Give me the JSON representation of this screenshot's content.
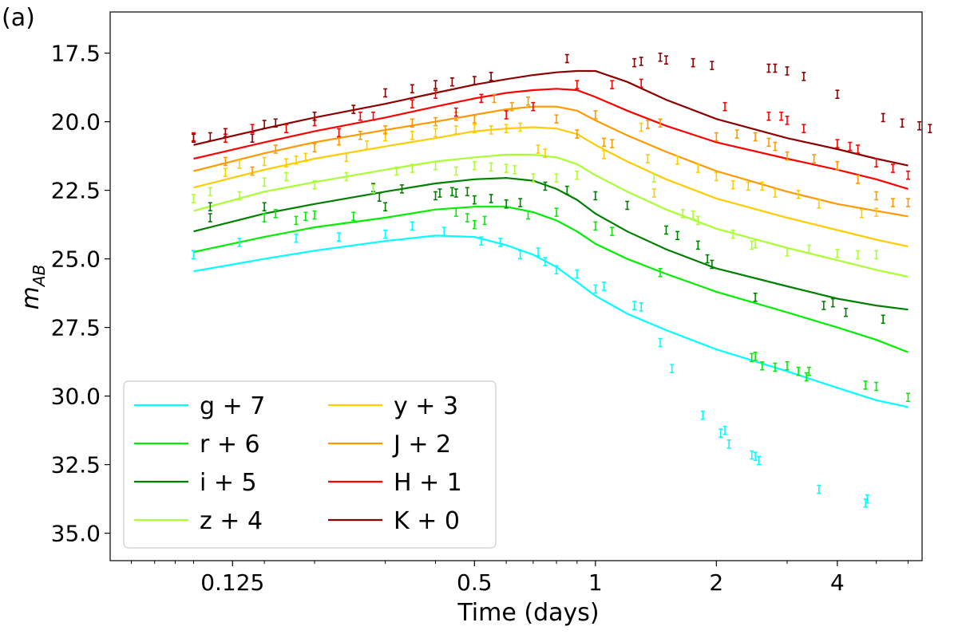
{
  "chart_data": {
    "type": "line",
    "panel_label": "(a)",
    "xlabel": "Time (days)",
    "ylabel": "m",
    "ylabel_sub": "AB",
    "x_scale": "log2",
    "y_inverted": true,
    "xlim": [
      0.062,
      6.5
    ],
    "ylim": [
      36.0,
      16.0
    ],
    "x_ticks": [
      0.125,
      0.5,
      1,
      2,
      4
    ],
    "x_tick_labels": [
      "0.125",
      "0.5",
      "1",
      "2",
      "4"
    ],
    "y_ticks": [
      17.5,
      20.0,
      22.5,
      25.0,
      27.5,
      30.0,
      32.5,
      35.0
    ],
    "y_tick_labels": [
      "17.5",
      "20.0",
      "22.5",
      "25.0",
      "27.5",
      "30.0",
      "32.5",
      "35.0"
    ],
    "grid": false,
    "legend_position": "bottom-left",
    "model_x": [
      0.1,
      0.15,
      0.2,
      0.3,
      0.4,
      0.5,
      0.6,
      0.7,
      0.8,
      0.9,
      1.0,
      1.2,
      1.5,
      2.0,
      3.0,
      4.0,
      5.0,
      6.0
    ],
    "series": [
      {
        "name": "g + 7",
        "color": "#00ffff",
        "model_y": [
          25.45,
          25.0,
          24.7,
          24.35,
          24.15,
          24.2,
          24.5,
          24.85,
          25.3,
          25.85,
          26.35,
          27.0,
          27.6,
          28.3,
          29.1,
          29.7,
          30.15,
          30.4
        ],
        "obs": [
          [
            0.1,
            24.85
          ],
          [
            0.13,
            24.4
          ],
          [
            0.18,
            24.25
          ],
          [
            0.23,
            24.2
          ],
          [
            0.3,
            24.1
          ],
          [
            0.35,
            23.8
          ],
          [
            0.42,
            24.0
          ],
          [
            0.52,
            24.35
          ],
          [
            0.58,
            24.4
          ],
          [
            0.65,
            24.85
          ],
          [
            0.72,
            24.75
          ],
          [
            0.75,
            25.1
          ],
          [
            0.8,
            25.4
          ],
          [
            0.9,
            25.55
          ],
          [
            1.0,
            26.1
          ],
          [
            1.05,
            26.0
          ],
          [
            1.25,
            26.7
          ],
          [
            1.3,
            26.75
          ],
          [
            1.45,
            28.05
          ],
          [
            1.55,
            29.0
          ],
          [
            1.85,
            30.7
          ],
          [
            2.05,
            31.35
          ],
          [
            2.1,
            31.25
          ],
          [
            2.15,
            31.75
          ],
          [
            2.45,
            32.15
          ],
          [
            2.5,
            32.2
          ],
          [
            2.55,
            32.35
          ],
          [
            3.6,
            33.4
          ],
          [
            4.7,
            33.9
          ],
          [
            4.75,
            33.75
          ]
        ]
      },
      {
        "name": "r + 6",
        "color": "#00ee00",
        "model_y": [
          24.75,
          24.2,
          23.85,
          23.5,
          23.2,
          23.1,
          23.1,
          23.3,
          23.6,
          24.0,
          24.45,
          25.0,
          25.55,
          26.2,
          26.95,
          27.5,
          27.95,
          28.4
        ],
        "obs": [
          [
            0.15,
            23.5
          ],
          [
            0.16,
            23.35
          ],
          [
            0.18,
            23.6
          ],
          [
            0.19,
            23.45
          ],
          [
            0.2,
            23.4
          ],
          [
            0.25,
            23.45
          ],
          [
            0.45,
            23.3
          ],
          [
            0.48,
            23.5
          ],
          [
            0.5,
            23.75
          ],
          [
            0.53,
            23.6
          ],
          [
            0.68,
            23.4
          ],
          [
            0.8,
            23.3
          ],
          [
            1.0,
            23.8
          ],
          [
            1.1,
            24.0
          ],
          [
            1.45,
            25.5
          ],
          [
            2.45,
            28.6
          ],
          [
            2.5,
            28.55
          ],
          [
            2.6,
            28.9
          ],
          [
            2.8,
            28.95
          ],
          [
            3.0,
            28.9
          ],
          [
            3.2,
            29.1
          ],
          [
            3.35,
            29.3
          ],
          [
            3.4,
            29.1
          ],
          [
            4.7,
            29.6
          ],
          [
            5.0,
            29.65
          ],
          [
            6.0,
            30.05
          ]
        ]
      },
      {
        "name": "i + 5",
        "color": "#008000",
        "model_y": [
          24.0,
          23.35,
          23.0,
          22.55,
          22.25,
          22.1,
          22.05,
          22.15,
          22.45,
          22.85,
          23.35,
          24.0,
          24.65,
          25.35,
          26.0,
          26.45,
          26.7,
          26.85
        ],
        "obs": [
          [
            0.11,
            23.1
          ],
          [
            0.11,
            23.5
          ],
          [
            0.15,
            23.1
          ],
          [
            0.28,
            22.4
          ],
          [
            0.29,
            22.75
          ],
          [
            0.3,
            23.1
          ],
          [
            0.33,
            22.45
          ],
          [
            0.4,
            22.7
          ],
          [
            0.41,
            22.6
          ],
          [
            0.44,
            22.55
          ],
          [
            0.45,
            22.6
          ],
          [
            0.48,
            22.55
          ],
          [
            0.5,
            22.85
          ],
          [
            0.55,
            22.8
          ],
          [
            0.6,
            23.0
          ],
          [
            0.65,
            22.95
          ],
          [
            0.75,
            22.35
          ],
          [
            0.85,
            22.5
          ],
          [
            1.0,
            22.7
          ],
          [
            1.2,
            23.05
          ],
          [
            1.5,
            23.95
          ],
          [
            1.6,
            24.15
          ],
          [
            1.8,
            24.5
          ],
          [
            1.9,
            25.0
          ],
          [
            1.95,
            25.2
          ],
          [
            2.5,
            26.4
          ],
          [
            3.7,
            26.7
          ],
          [
            3.9,
            26.6
          ],
          [
            4.2,
            26.95
          ],
          [
            5.2,
            27.2
          ]
        ]
      },
      {
        "name": "z + 4",
        "color": "#aaff33",
        "model_y": [
          23.25,
          22.55,
          22.2,
          21.75,
          21.45,
          21.3,
          21.2,
          21.2,
          21.3,
          21.55,
          21.95,
          22.55,
          23.2,
          23.9,
          24.6,
          25.05,
          25.4,
          25.65
        ],
        "obs": [
          [
            0.1,
            22.8
          ],
          [
            0.11,
            22.55
          ],
          [
            0.13,
            22.7
          ],
          [
            0.15,
            22.2
          ],
          [
            0.17,
            22.0
          ],
          [
            0.2,
            22.3
          ],
          [
            0.24,
            22.0
          ],
          [
            0.28,
            22.45
          ],
          [
            0.32,
            21.8
          ],
          [
            0.35,
            21.7
          ],
          [
            0.4,
            21.6
          ],
          [
            0.45,
            21.8
          ],
          [
            0.5,
            21.6
          ],
          [
            0.55,
            21.65
          ],
          [
            0.6,
            21.7
          ],
          [
            0.63,
            21.75
          ],
          [
            0.7,
            22.05
          ],
          [
            0.8,
            22.05
          ],
          [
            0.9,
            21.95
          ],
          [
            1.4,
            22.05
          ],
          [
            1.65,
            23.35
          ],
          [
            1.75,
            23.4
          ],
          [
            1.8,
            23.6
          ],
          [
            2.2,
            24.1
          ],
          [
            2.45,
            24.5
          ],
          [
            2.5,
            24.45
          ],
          [
            3.0,
            24.75
          ],
          [
            3.4,
            24.65
          ],
          [
            4.0,
            24.8
          ],
          [
            4.5,
            24.85
          ],
          [
            5.0,
            24.85
          ]
        ]
      },
      {
        "name": "y + 3",
        "color": "#ffcc00",
        "model_y": [
          22.4,
          21.75,
          21.35,
          20.9,
          20.6,
          20.35,
          20.25,
          20.2,
          20.25,
          20.45,
          20.85,
          21.45,
          22.1,
          22.8,
          23.5,
          23.95,
          24.3,
          24.55
        ],
        "obs": [
          [
            0.12,
            21.85
          ],
          [
            0.13,
            21.55
          ],
          [
            0.15,
            21.45
          ],
          [
            0.17,
            21.5
          ],
          [
            0.18,
            21.4
          ],
          [
            0.19,
            21.3
          ],
          [
            0.24,
            21.3
          ],
          [
            0.27,
            20.85
          ],
          [
            0.3,
            20.55
          ],
          [
            0.35,
            20.5
          ],
          [
            0.4,
            20.4
          ],
          [
            0.45,
            20.3
          ],
          [
            0.5,
            20.25
          ],
          [
            0.55,
            20.3
          ],
          [
            0.6,
            20.25
          ],
          [
            0.65,
            20.2
          ],
          [
            0.72,
            21.0
          ],
          [
            0.75,
            21.15
          ],
          [
            1.05,
            21.2
          ],
          [
            1.3,
            20.2
          ],
          [
            1.35,
            21.35
          ],
          [
            1.4,
            22.6
          ],
          [
            1.6,
            21.4
          ],
          [
            1.8,
            21.7
          ],
          [
            2.0,
            22.0
          ],
          [
            2.2,
            22.3
          ],
          [
            2.4,
            22.35
          ],
          [
            2.6,
            22.35
          ],
          [
            2.8,
            22.6
          ],
          [
            3.2,
            22.65
          ],
          [
            3.6,
            23.0
          ],
          [
            4.6,
            23.35
          ],
          [
            5.0,
            23.3
          ]
        ]
      },
      {
        "name": "J + 2",
        "color": "#ff9900",
        "model_y": [
          21.8,
          21.15,
          20.75,
          20.3,
          20.0,
          19.75,
          19.55,
          19.45,
          19.45,
          19.6,
          19.95,
          20.5,
          21.1,
          21.8,
          22.55,
          23.0,
          23.25,
          23.45
        ],
        "obs": [
          [
            0.12,
            21.45
          ],
          [
            0.14,
            21.8
          ],
          [
            0.16,
            21.0
          ],
          [
            0.2,
            20.95
          ],
          [
            0.23,
            20.7
          ],
          [
            0.26,
            20.5
          ],
          [
            0.3,
            20.3
          ],
          [
            0.35,
            20.05
          ],
          [
            0.4,
            20.0
          ],
          [
            0.45,
            19.8
          ],
          [
            0.5,
            19.9
          ],
          [
            0.56,
            19.15
          ],
          [
            0.62,
            19.45
          ],
          [
            0.68,
            19.25
          ],
          [
            0.8,
            19.9
          ],
          [
            0.9,
            20.45
          ],
          [
            1.0,
            19.75
          ],
          [
            1.05,
            20.75
          ],
          [
            1.1,
            20.8
          ],
          [
            1.35,
            20.1
          ],
          [
            1.45,
            20.05
          ],
          [
            2.0,
            20.55
          ],
          [
            2.25,
            20.45
          ],
          [
            2.5,
            20.55
          ],
          [
            2.7,
            20.75
          ],
          [
            2.8,
            20.9
          ],
          [
            3.0,
            21.25
          ],
          [
            3.5,
            21.35
          ],
          [
            4.0,
            21.6
          ],
          [
            4.5,
            22.1
          ],
          [
            5.0,
            22.7
          ],
          [
            5.5,
            22.95
          ],
          [
            6.0,
            22.95
          ]
        ]
      },
      {
        "name": "H + 1",
        "color": "#ff0000",
        "model_y": [
          21.35,
          20.75,
          20.35,
          19.85,
          19.45,
          19.15,
          18.95,
          18.85,
          18.8,
          18.85,
          19.1,
          19.6,
          20.15,
          20.75,
          21.35,
          21.75,
          22.1,
          22.45
        ],
        "obs": [
          [
            0.1,
            20.55
          ],
          [
            0.12,
            20.6
          ],
          [
            0.14,
            20.25
          ],
          [
            0.17,
            20.25
          ],
          [
            0.2,
            20.0
          ],
          [
            0.23,
            20.4
          ],
          [
            0.26,
            19.8
          ],
          [
            0.28,
            19.8
          ],
          [
            0.35,
            19.35
          ],
          [
            0.4,
            19.0
          ],
          [
            0.45,
            19.65
          ],
          [
            0.52,
            19.15
          ],
          [
            0.6,
            19.75
          ],
          [
            0.7,
            19.45
          ],
          [
            0.9,
            18.65
          ],
          [
            1.1,
            18.65
          ],
          [
            1.3,
            18.6
          ],
          [
            2.1,
            19.45
          ],
          [
            2.7,
            19.8
          ],
          [
            2.9,
            19.8
          ],
          [
            3.0,
            19.95
          ],
          [
            3.3,
            20.25
          ],
          [
            4.0,
            20.8
          ],
          [
            4.3,
            20.9
          ],
          [
            4.5,
            21.0
          ],
          [
            5.0,
            21.5
          ],
          [
            5.5,
            21.7
          ],
          [
            6.0,
            21.95
          ]
        ]
      },
      {
        "name": "K + 0",
        "color": "#8b0000",
        "model_y": [
          20.85,
          20.25,
          19.85,
          19.35,
          18.95,
          18.65,
          18.45,
          18.3,
          18.2,
          18.15,
          18.15,
          18.55,
          19.2,
          19.9,
          20.6,
          21.0,
          21.35,
          21.6
        ],
        "obs": [
          [
            0.1,
            20.6
          ],
          [
            0.11,
            20.55
          ],
          [
            0.12,
            20.4
          ],
          [
            0.14,
            20.6
          ],
          [
            0.15,
            20.1
          ],
          [
            0.16,
            20.05
          ],
          [
            0.2,
            19.8
          ],
          [
            0.25,
            19.55
          ],
          [
            0.3,
            18.95
          ],
          [
            0.35,
            18.8
          ],
          [
            0.4,
            18.65
          ],
          [
            0.44,
            18.55
          ],
          [
            0.5,
            18.5
          ],
          [
            0.55,
            18.35
          ],
          [
            0.85,
            17.7
          ],
          [
            1.25,
            17.85
          ],
          [
            1.3,
            17.8
          ],
          [
            1.45,
            17.65
          ],
          [
            1.5,
            17.75
          ],
          [
            1.75,
            17.85
          ],
          [
            1.95,
            17.95
          ],
          [
            2.7,
            18.05
          ],
          [
            2.8,
            18.05
          ],
          [
            3.0,
            18.15
          ],
          [
            3.3,
            18.35
          ],
          [
            4.0,
            19.0
          ],
          [
            5.2,
            19.85
          ],
          [
            5.8,
            20.05
          ],
          [
            6.4,
            20.15
          ],
          [
            6.8,
            20.25
          ]
        ]
      }
    ]
  }
}
